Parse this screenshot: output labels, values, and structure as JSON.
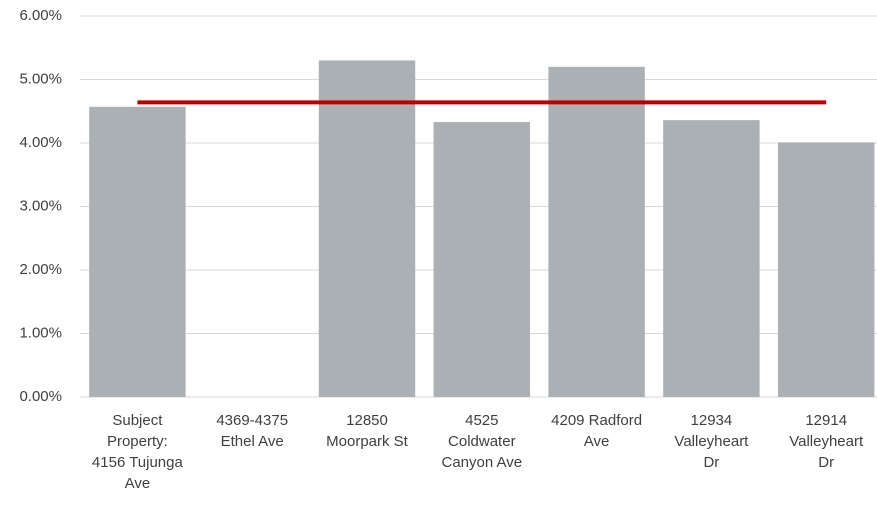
{
  "chart_data": {
    "type": "bar",
    "categories": [
      "Subject\nProperty:\n4156 Tujunga\nAve",
      "4369-4375\nEthel Ave",
      "12850\nMoorpark St",
      "4525\nColdwater\nCanyon Ave",
      "4209 Radford\nAve",
      "12934\nValleyheart\nDr",
      "12914\nValleyheart\nDr"
    ],
    "values": [
      4.57,
      0,
      5.3,
      4.33,
      5.2,
      4.36,
      4.01
    ],
    "color": "#abb0b5",
    "average_line": {
      "value": 4.64,
      "color": "#c00000"
    },
    "ylim": [
      0,
      6
    ],
    "yticks": [
      {
        "value": 0,
        "label": "0.00%"
      },
      {
        "value": 1,
        "label": "1.00%"
      },
      {
        "value": 2,
        "label": "2.00%"
      },
      {
        "value": 3,
        "label": "3.00%"
      },
      {
        "value": 4,
        "label": "4.00%"
      },
      {
        "value": 5,
        "label": "5.00%"
      },
      {
        "value": 6,
        "label": "6.00%"
      }
    ],
    "grid": true
  }
}
